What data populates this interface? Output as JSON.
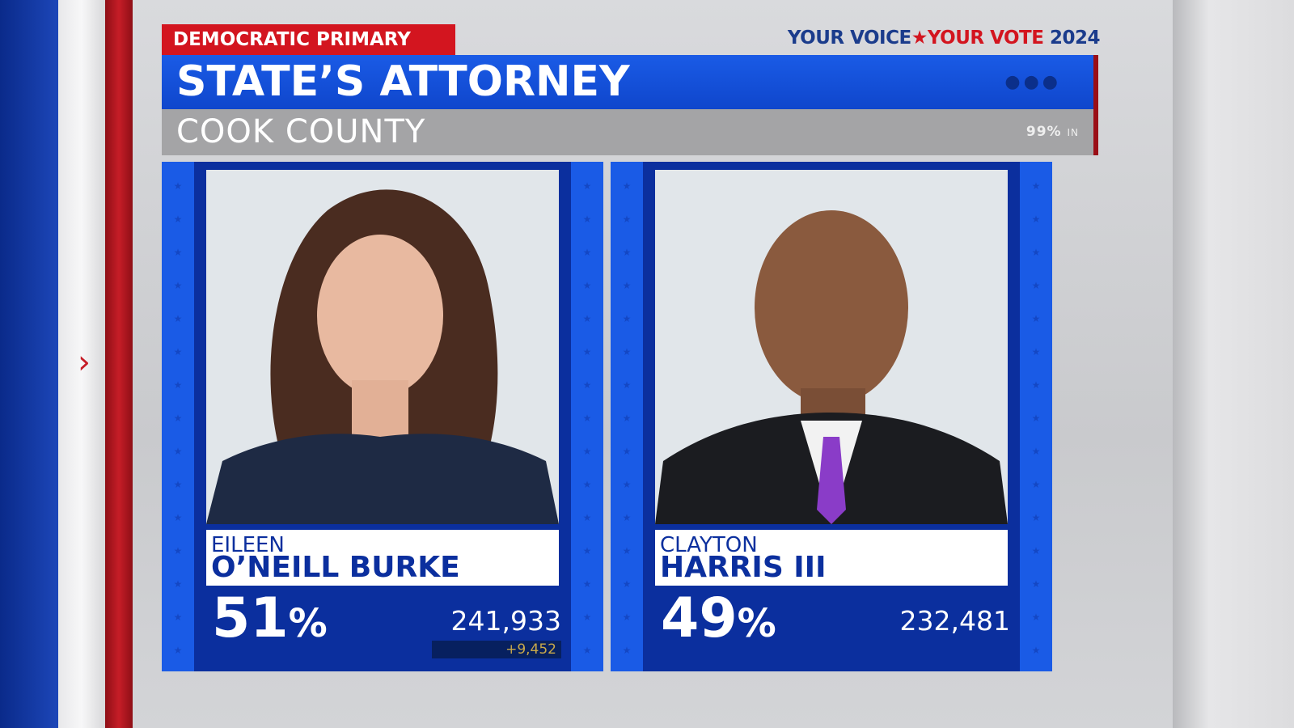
{
  "header": {
    "tag": "DEMOCRATIC PRIMARY",
    "brand_part1": "YOUR VOICE",
    "brand_part2": "YOUR VOTE",
    "brand_year": "2024",
    "title": "STATE’S ATTORNEY",
    "subtitle": "COOK COUNTY",
    "reporting": "99%",
    "reporting_suffix": "IN"
  },
  "candidates": [
    {
      "first": "EILEEN",
      "last": "O’NEILL BURKE",
      "percent": "51",
      "votes": "241,933",
      "lead": "+9,452",
      "leading": true
    },
    {
      "first": "CLAYTON",
      "last": "HARRIS III",
      "percent": "49",
      "votes": "232,481"
    }
  ],
  "colors": {
    "party_red": "#d3151f",
    "card_blue": "#1a5be6",
    "card_dark": "#0b2f9e",
    "lead_gold": "#c9a94a"
  }
}
